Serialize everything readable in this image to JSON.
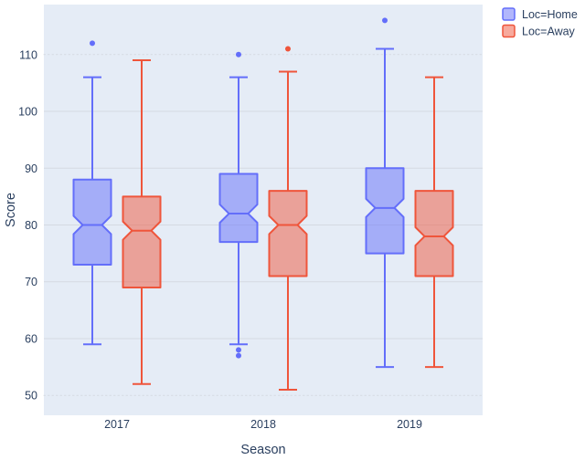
{
  "chart_data": {
    "type": "box",
    "notched": true,
    "orientation": "vertical",
    "title": "",
    "xlabel": "Season",
    "ylabel": "Score",
    "categories": [
      "2017",
      "2018",
      "2019"
    ],
    "yticks": [
      50,
      60,
      70,
      80,
      90,
      100,
      110
    ],
    "ylim": [
      46.5,
      118.8
    ],
    "grid": true,
    "dotted_gridlines": [
      50,
      110
    ],
    "legend": {
      "position": "top-right",
      "entries": [
        {
          "label": "Loc=Home",
          "color": "#636EFA"
        },
        {
          "label": "Loc=Away",
          "color": "#EF553B"
        }
      ]
    },
    "series": [
      {
        "name": "Loc=Home",
        "color": "#636EFA",
        "fill": "rgba(99,110,250,0.5)",
        "boxes": [
          {
            "category": "2017",
            "min": 59,
            "q1": 73,
            "median": 80,
            "q3": 88,
            "max": 106,
            "outliers": [
              112
            ]
          },
          {
            "category": "2018",
            "min": 59,
            "q1": 77,
            "median": 82,
            "q3": 89,
            "max": 106,
            "outliers": [
              110,
              58,
              57
            ]
          },
          {
            "category": "2019",
            "min": 55,
            "q1": 75,
            "median": 83,
            "q3": 90,
            "max": 111,
            "outliers": [
              116
            ]
          }
        ]
      },
      {
        "name": "Loc=Away",
        "color": "#EF553B",
        "fill": "rgba(239,85,59,0.5)",
        "boxes": [
          {
            "category": "2017",
            "min": 52,
            "q1": 69,
            "median": 79,
            "q3": 85,
            "max": 109,
            "outliers": []
          },
          {
            "category": "2018",
            "min": 51,
            "q1": 71,
            "median": 80,
            "q3": 86,
            "max": 107,
            "outliers": [
              111
            ]
          },
          {
            "category": "2019",
            "min": 55,
            "q1": 71,
            "median": 78,
            "q3": 86,
            "max": 106,
            "outliers": []
          }
        ]
      }
    ]
  },
  "colors": {
    "page_bg": "#FFFFFF",
    "plot_bg": "#E5ECF6",
    "gridline": "#D5DAE2",
    "text": "#2A3F5F",
    "home_line": "#636EFA",
    "home_fill": "rgba(99,110,250,0.5)",
    "away_line": "#EF553B",
    "away_fill": "rgba(239,85,59,0.5)"
  }
}
